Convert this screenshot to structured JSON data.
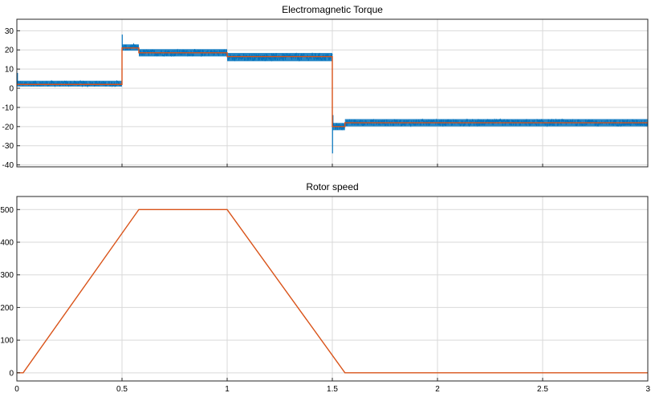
{
  "chart_data": [
    {
      "type": "line",
      "title": "Electromagnetic Torque",
      "xlabel": "",
      "ylabel": "",
      "xlim": [
        0,
        3
      ],
      "ylim": [
        -41,
        36
      ],
      "grid": true,
      "x_ticks": [
        {
          "value": 0.5,
          "label": ""
        },
        {
          "value": 1,
          "label": ""
        },
        {
          "value": 1.5,
          "label": ""
        },
        {
          "value": 2,
          "label": ""
        },
        {
          "value": 2.5,
          "label": ""
        },
        {
          "value": 3,
          "label": ""
        }
      ],
      "y_ticks": [
        {
          "value": 30,
          "label": "30"
        },
        {
          "value": 20,
          "label": "20"
        },
        {
          "value": 10,
          "label": "10"
        },
        {
          "value": 0,
          "label": "0"
        },
        {
          "value": -10,
          "label": "-10"
        },
        {
          "value": -20,
          "label": "-20"
        },
        {
          "value": -30,
          "label": "-30"
        },
        {
          "value": -40,
          "label": "-40"
        }
      ],
      "series": [
        {
          "color": "#0072BD",
          "style": "noisy-band",
          "segments": [
            {
              "x": [
                0.0,
                0.5
              ],
              "center": 2.5,
              "band": [
                0.3,
                4.5
              ]
            },
            {
              "x": [
                0.5,
                0.58
              ],
              "center": 21,
              "band": [
                19,
                23.5
              ]
            },
            {
              "x": [
                0.58,
                1.0
              ],
              "center": 18.5,
              "band": [
                16,
                21
              ]
            },
            {
              "x": [
                1.0,
                1.5
              ],
              "center": 16.5,
              "band": [
                13.5,
                19
              ]
            },
            {
              "x": [
                1.5,
                1.56
              ],
              "center": -20,
              "band": [
                -22.5,
                -17.5
              ]
            },
            {
              "x": [
                1.56,
                3.0
              ],
              "center": -18,
              "band": [
                -20.5,
                -15.5
              ]
            }
          ],
          "spikes": [
            {
              "x": 0.003,
              "y": 8
            },
            {
              "x": 0.501,
              "y": 28
            },
            {
              "x": 1.501,
              "y": -34
            },
            {
              "x": 1.503,
              "y": -14
            }
          ]
        },
        {
          "color": "#D95319",
          "style": "line",
          "x": [
            0,
            0.5,
            0.5,
            0.58,
            0.58,
            1.0,
            1.0,
            1.5,
            1.5,
            1.56,
            1.56,
            3.0
          ],
          "y": [
            2,
            2,
            21,
            21,
            18.5,
            18.5,
            16.5,
            16.5,
            -20,
            -20,
            -18,
            -18
          ]
        }
      ]
    },
    {
      "type": "line",
      "title": "Rotor speed",
      "xlabel": "",
      "ylabel": "",
      "xlim": [
        0,
        3
      ],
      "ylim": [
        -25,
        540
      ],
      "grid": true,
      "x_ticks": [
        {
          "value": 0,
          "label": "0"
        },
        {
          "value": 0.5,
          "label": "0.5"
        },
        {
          "value": 1,
          "label": "1"
        },
        {
          "value": 1.5,
          "label": "1.5"
        },
        {
          "value": 2,
          "label": "2"
        },
        {
          "value": 2.5,
          "label": "2.5"
        },
        {
          "value": 3,
          "label": "3"
        }
      ],
      "y_ticks": [
        {
          "value": 500,
          "label": "500"
        },
        {
          "value": 400,
          "label": "400"
        },
        {
          "value": 300,
          "label": "300"
        },
        {
          "value": 200,
          "label": "200"
        },
        {
          "value": 100,
          "label": "100"
        },
        {
          "value": 0,
          "label": "0"
        }
      ],
      "series": [
        {
          "color": "#D95319",
          "style": "line",
          "x": [
            0,
            0.03,
            0.58,
            1.0,
            1.56,
            3.0
          ],
          "y": [
            0,
            0,
            500,
            500,
            0,
            0
          ]
        }
      ]
    }
  ]
}
